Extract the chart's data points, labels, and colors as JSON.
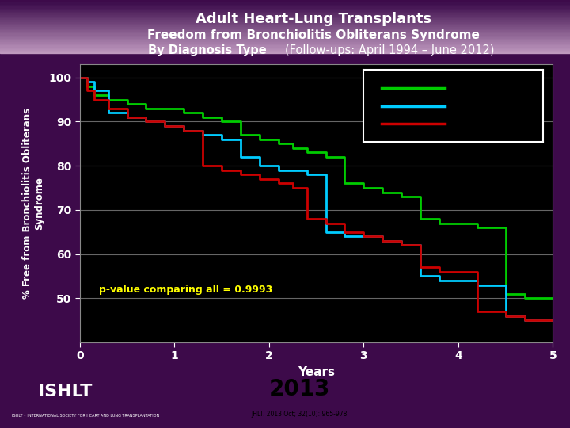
{
  "title_line1": "Adult Heart-Lung Transplants",
  "title_line2": "Freedom from Bronchiolitis Obliterans Syndrome",
  "title_line3_bold": "By Diagnosis Type ",
  "title_line3_normal": "(Follow-ups: April 1994 – June 2012)",
  "ylabel": "% Free from Bronchiolitis Obliterans\nSyndrome",
  "xlabel": "Years",
  "background_color": "#3d0a4a",
  "header_gradient_top": "#c0a0c0",
  "plot_bg_color": "#000000",
  "title_color": "#ffffff",
  "axis_color": "#888888",
  "tick_color": "#ffffff",
  "text_color": "#ffffff",
  "annotation": "p-value comparing all = 0.9993",
  "annotation_color": "#ffff00",
  "ylim": [
    40,
    103
  ],
  "xlim": [
    0,
    5
  ],
  "yticks": [
    50,
    60,
    70,
    80,
    90,
    100
  ],
  "xticks": [
    0,
    1,
    2,
    3,
    4,
    5
  ],
  "grid_color": "#666666",
  "line_green": {
    "x": [
      0,
      0.08,
      0.15,
      0.3,
      0.5,
      0.7,
      0.9,
      1.1,
      1.3,
      1.5,
      1.7,
      1.9,
      2.1,
      2.25,
      2.4,
      2.6,
      2.8,
      3.0,
      3.2,
      3.4,
      3.6,
      3.8,
      4.0,
      4.2,
      4.5,
      4.7,
      5.0
    ],
    "y": [
      100,
      98,
      96,
      95,
      94,
      93,
      93,
      92,
      91,
      90,
      87,
      86,
      85,
      84,
      83,
      82,
      76,
      75,
      74,
      73,
      68,
      67,
      67,
      66,
      51,
      50,
      50
    ],
    "color": "#00cc00",
    "linewidth": 2.0
  },
  "line_cyan": {
    "x": [
      0,
      0.08,
      0.15,
      0.3,
      0.5,
      0.7,
      0.9,
      1.1,
      1.3,
      1.5,
      1.7,
      1.9,
      2.1,
      2.25,
      2.4,
      2.6,
      2.8,
      3.0,
      3.2,
      3.4,
      3.6,
      3.8,
      4.0,
      4.2,
      4.5,
      4.7,
      5.0
    ],
    "y": [
      100,
      99,
      97,
      92,
      91,
      90,
      89,
      88,
      87,
      86,
      82,
      80,
      79,
      79,
      78,
      65,
      64,
      64,
      63,
      62,
      55,
      54,
      54,
      53,
      46,
      45,
      45
    ],
    "color": "#00ccff",
    "linewidth": 2.0
  },
  "line_red": {
    "x": [
      0,
      0.08,
      0.15,
      0.3,
      0.5,
      0.7,
      0.9,
      1.1,
      1.3,
      1.5,
      1.7,
      1.9,
      2.1,
      2.25,
      2.4,
      2.6,
      2.8,
      3.0,
      3.2,
      3.4,
      3.6,
      3.8,
      4.0,
      4.2,
      4.5,
      4.7,
      5.0
    ],
    "y": [
      100,
      97,
      95,
      93,
      91,
      90,
      89,
      88,
      80,
      79,
      78,
      77,
      76,
      75,
      68,
      67,
      65,
      64,
      63,
      62,
      57,
      56,
      56,
      47,
      46,
      45,
      45
    ],
    "color": "#cc0000",
    "linewidth": 2.0
  },
  "legend_colors": [
    "#00cc00",
    "#00ccff",
    "#cc0000"
  ],
  "footer_color": "#3d0a4a",
  "year_text": "2013",
  "citation": "JHLT. 2013 Oct; 32(10): 965-978"
}
